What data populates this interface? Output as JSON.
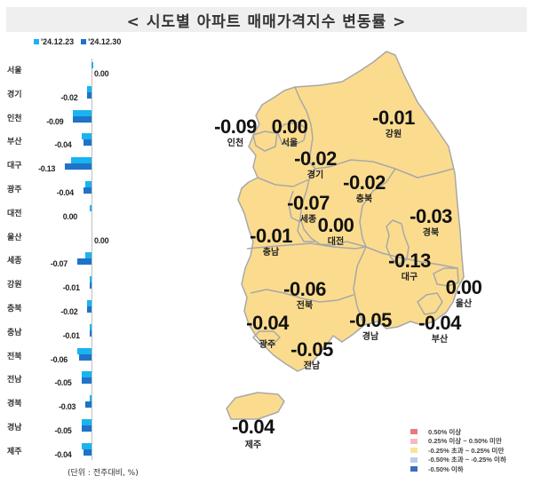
{
  "title": "< 시도별 아파트 매매가격지수 변동률 >",
  "legend": {
    "series": [
      {
        "label": "'24.12.23",
        "color": "#19b4f0"
      },
      {
        "label": "'24.12.30",
        "color": "#1f73c9"
      }
    ]
  },
  "unit_note": "(단위 : 전주대비, %)",
  "map_legend": [
    {
      "label": "0.50% 이상",
      "color": "#ea7a7a"
    },
    {
      "label": "0.25% 이상 ~ 0.50% 미만",
      "color": "#f6b9c0"
    },
    {
      "label": "-0.25% 초과 ~ 0.25% 미만",
      "color": "#fbe29a"
    },
    {
      "label": "-0.50% 초과 ~ -0.25% 이하",
      "color": "#b9cdee"
    },
    {
      "label": "-0.50% 이하",
      "color": "#3d6cc4"
    }
  ],
  "map_regions": [
    {
      "name": "서울",
      "value": "0.00"
    },
    {
      "name": "인천",
      "value": "-0.09"
    },
    {
      "name": "경기",
      "value": "-0.02"
    },
    {
      "name": "강원",
      "value": "-0.01"
    },
    {
      "name": "충북",
      "value": "-0.02"
    },
    {
      "name": "세종",
      "value": "-0.07"
    },
    {
      "name": "대전",
      "value": "0.00"
    },
    {
      "name": "충남",
      "value": "-0.01"
    },
    {
      "name": "경북",
      "value": "-0.03"
    },
    {
      "name": "대구",
      "value": "-0.13"
    },
    {
      "name": "울산",
      "value": "0.00"
    },
    {
      "name": "전북",
      "value": "-0.06"
    },
    {
      "name": "광주",
      "value": "-0.04"
    },
    {
      "name": "전남",
      "value": "-0.05"
    },
    {
      "name": "경남",
      "value": "-0.05"
    },
    {
      "name": "부산",
      "value": "-0.04"
    },
    {
      "name": "제주",
      "value": "-0.04"
    }
  ],
  "chart_data": {
    "type": "bar",
    "orientation": "horizontal",
    "title": "시도별 아파트 매매가격지수 변동률",
    "xlabel": "",
    "ylabel": "",
    "unit": "전주대비, %",
    "categories": [
      "서울",
      "경기",
      "인천",
      "부산",
      "대구",
      "광주",
      "대전",
      "울산",
      "세종",
      "강원",
      "충북",
      "충남",
      "전북",
      "전남",
      "경북",
      "경남",
      "제주"
    ],
    "series": [
      {
        "name": "'24.12.23",
        "values": [
          0.01,
          -0.02,
          -0.09,
          -0.05,
          -0.1,
          -0.03,
          -0.01,
          0.0,
          -0.03,
          -0.01,
          -0.02,
          -0.01,
          -0.07,
          -0.05,
          -0.01,
          -0.05,
          -0.05
        ]
      },
      {
        "name": "'24.12.30",
        "values": [
          0.0,
          -0.02,
          -0.09,
          -0.04,
          -0.13,
          -0.04,
          0.0,
          0.0,
          -0.07,
          -0.01,
          -0.02,
          -0.01,
          -0.06,
          -0.05,
          -0.03,
          -0.05,
          -0.04
        ]
      }
    ],
    "data_labels": [
      "0.00",
      "-0.02",
      "-0.09",
      "-0.04",
      "-0.13",
      "-0.04",
      "0.00",
      "0.00",
      "-0.07",
      "-0.01",
      "-0.02",
      "-0.01",
      "-0.06",
      "-0.05",
      "-0.03",
      "-0.05",
      "-0.04"
    ],
    "legend_position": "top-left",
    "grid": false
  }
}
